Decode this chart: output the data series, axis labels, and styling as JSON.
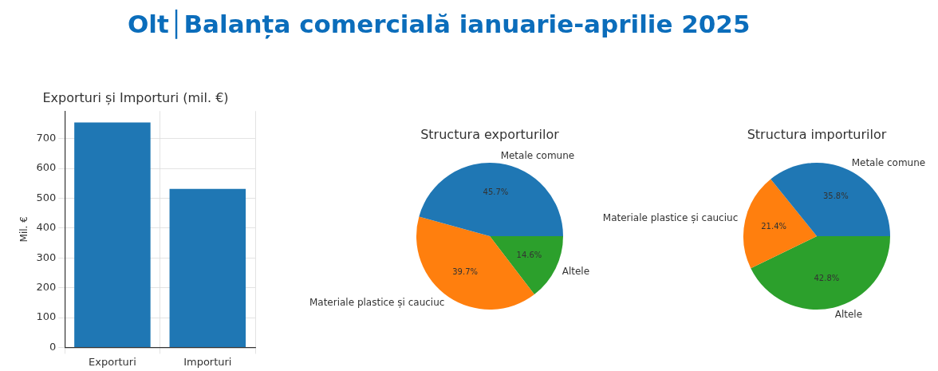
{
  "chart_data": [
    {
      "type": "bar",
      "title": "Olt│Balanța comercială ianuarie-aprilie 2025",
      "subtitle": "Exporturi și Importuri (mil. €)",
      "ylabel": "Mil. €",
      "categories": [
        "Exporturi",
        "Importuri"
      ],
      "values": [
        754,
        531
      ],
      "color": "#1f77b4",
      "ylim": [
        0,
        792
      ],
      "yticks": [
        0,
        100,
        200,
        300,
        400,
        500,
        600,
        700
      ],
      "grid": true,
      "legend": false
    },
    {
      "type": "pie",
      "title": "Structura exporturilor",
      "categories": [
        "Metale comune",
        "Materiale plastice și cauciuc",
        "Altele"
      ],
      "values": [
        45.7,
        39.7,
        14.6
      ],
      "colors": [
        "#1f77b4",
        "#ff7f0e",
        "#2ca02c"
      ],
      "value_labels": [
        "45.7%",
        "39.7%",
        "14.6%"
      ],
      "legend": false
    },
    {
      "type": "pie",
      "title": "Structura importurilor",
      "categories": [
        "Metale comune",
        "Materiale plastice și cauciuc",
        "Altele"
      ],
      "values": [
        35.8,
        21.4,
        42.8
      ],
      "colors": [
        "#1f77b4",
        "#ff7f0e",
        "#2ca02c"
      ],
      "value_labels": [
        "35.8%",
        "21.4%",
        "42.8%"
      ],
      "legend": false
    }
  ]
}
